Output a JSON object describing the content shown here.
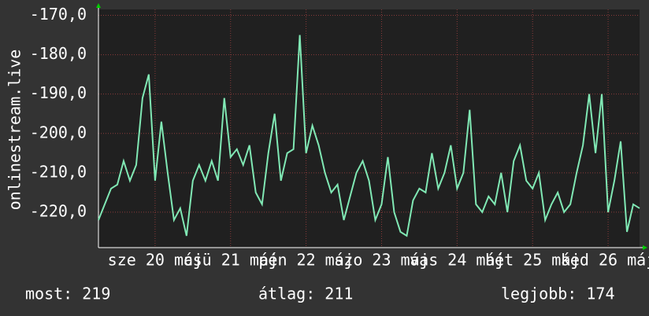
{
  "chart_data": {
    "type": "line",
    "y_label": "onlinestream.live",
    "x": [
      0,
      2,
      4,
      6,
      8,
      10,
      12,
      14,
      16,
      18,
      20,
      22,
      24,
      26,
      28,
      30,
      32,
      34,
      36,
      38,
      40,
      42,
      44,
      46,
      48,
      50,
      52,
      54,
      56,
      58,
      60,
      62,
      64,
      66,
      68,
      70,
      72,
      74,
      76,
      78,
      80,
      82,
      84,
      86,
      88,
      90,
      92,
      94,
      96,
      98,
      100,
      102,
      104,
      106,
      108,
      110,
      112,
      114,
      116,
      118,
      120,
      122,
      124,
      126,
      128,
      130,
      132,
      134,
      136,
      138,
      140,
      142,
      144,
      146,
      148,
      150,
      152,
      154,
      156,
      158,
      160,
      162,
      164,
      166,
      168,
      170,
      172
    ],
    "series": [
      {
        "color": "#80e8b4",
        "values": [
          -222,
          -218,
          -214,
          -213,
          -207,
          -212,
          -208,
          -191,
          -185,
          -212,
          -197,
          -210,
          -222,
          -219,
          -226,
          -212,
          -208,
          -212,
          -207,
          -212,
          -191,
          -206,
          -204,
          -208,
          -203,
          -215,
          -218,
          -205,
          -195,
          -212,
          -205,
          -204,
          -175,
          -205,
          -198,
          -203,
          -210,
          -215,
          -213,
          -222,
          -216,
          -210,
          -207,
          -212,
          -222,
          -218,
          -206,
          -220,
          -225,
          -226,
          -217,
          -214,
          -215,
          -205,
          -214,
          -210,
          -203,
          -214,
          -210,
          -194,
          -218,
          -220,
          -216,
          -218,
          -210,
          -220,
          -207,
          -203,
          -212,
          -214,
          -210,
          -222,
          -218,
          -215,
          -220,
          -218,
          -210,
          -203,
          -190,
          -205,
          -190,
          -220,
          -212,
          -202,
          -225,
          -218,
          -219
        ]
      }
    ],
    "xlim": [
      0,
      172
    ],
    "xticks": [
      {
        "value": 18,
        "label": "sze 20 máj"
      },
      {
        "value": 42,
        "label": "csü 21 máj"
      },
      {
        "value": 66,
        "label": "pén 22 máj"
      },
      {
        "value": 90,
        "label": "szo 23 máj"
      },
      {
        "value": 114,
        "label": "vas 24 máj"
      },
      {
        "value": 138,
        "label": "hét 25 máj"
      },
      {
        "value": 162,
        "label": "ked 26 máj"
      }
    ],
    "ylim": [
      -229,
      -168.5
    ],
    "yticks": [
      {
        "value": -220,
        "label": "-220,0"
      },
      {
        "value": -210,
        "label": "-210,0"
      },
      {
        "value": -200,
        "label": "-200,0"
      },
      {
        "value": -190,
        "label": "-190,0"
      },
      {
        "value": -180,
        "label": "-180,0"
      },
      {
        "value": -170,
        "label": "-170,0"
      }
    ],
    "grid": true,
    "footer": {
      "current": "most: 219",
      "average": "átlag: 211",
      "best": "legjobb: 174"
    }
  }
}
